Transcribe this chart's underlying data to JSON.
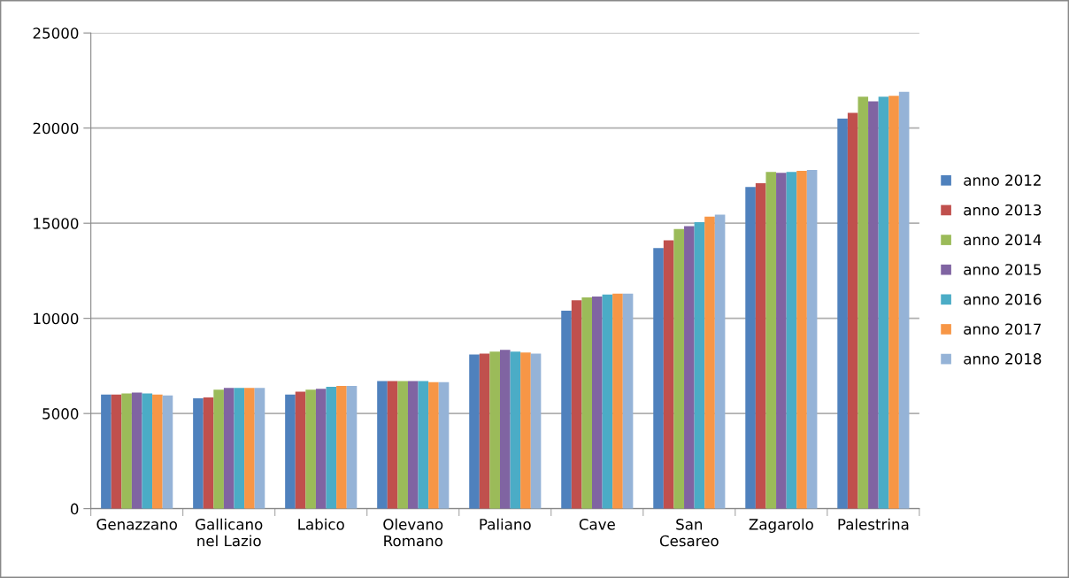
{
  "chart_data": {
    "type": "bar",
    "categories": [
      "Genazzano",
      "Gallicano\nnel Lazio",
      "Labico",
      "Olevano\nRomano",
      "Paliano",
      "Cave",
      "San\nCesareo",
      "Zagarolo",
      "Palestrina"
    ],
    "series": [
      {
        "name": "anno 2012",
        "color": "#4f81bd",
        "values": [
          6000,
          5800,
          6000,
          6700,
          8100,
          10400,
          13700,
          16900,
          20500
        ]
      },
      {
        "name": "anno 2013",
        "color": "#c0504d",
        "values": [
          6000,
          5850,
          6150,
          6700,
          8150,
          10950,
          14100,
          17100,
          20800
        ]
      },
      {
        "name": "anno 2014",
        "color": "#9bbb59",
        "values": [
          6050,
          6250,
          6250,
          6700,
          8250,
          11100,
          14700,
          17700,
          21650
        ]
      },
      {
        "name": "anno 2015",
        "color": "#8064a2",
        "values": [
          6100,
          6350,
          6300,
          6700,
          8350,
          11150,
          14850,
          17650,
          21400
        ]
      },
      {
        "name": "anno 2016",
        "color": "#4bacc6",
        "values": [
          6050,
          6350,
          6400,
          6700,
          8250,
          11250,
          15050,
          17700,
          21650
        ]
      },
      {
        "name": "anno 2017",
        "color": "#f79646",
        "values": [
          6000,
          6350,
          6450,
          6650,
          8200,
          11300,
          15350,
          17750,
          21700
        ]
      },
      {
        "name": "anno 2018",
        "color": "#95b3d7",
        "values": [
          5950,
          6350,
          6450,
          6650,
          8150,
          11300,
          15450,
          17800,
          21900
        ]
      }
    ],
    "ylim": [
      0,
      25000
    ],
    "yticks": [
      0,
      5000,
      10000,
      15000,
      20000,
      25000
    ],
    "grid": "y",
    "legend": "right"
  }
}
